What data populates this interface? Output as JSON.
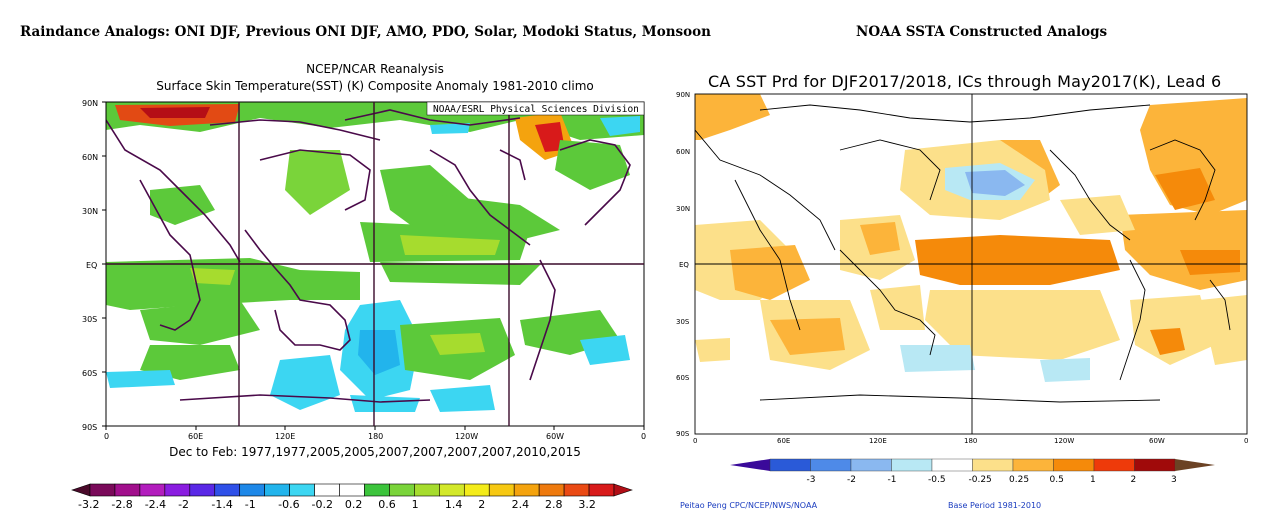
{
  "header": {
    "left_title": "Raindance Analogs: ONI DJF, Previous ONI DJF, AMO, PDO, Solar, Modoki Status, Monsoon",
    "right_title": "NOAA SSTA Constructed Analogs"
  },
  "left_panel": {
    "title_line1": "NCEP/NCAR Reanalysis",
    "title_line2": "Surface Skin Temperature(SST) (K) Composite Anomaly 1981-2010 climo",
    "attribution": "NOAA/ESRL Physical Sciences Division",
    "lat_labels": [
      "90N",
      "60N",
      "30N",
      "EQ",
      "30S",
      "60S",
      "90S"
    ],
    "lon_labels": [
      "0",
      "60E",
      "120E",
      "180",
      "120W",
      "60W",
      "0"
    ],
    "footer": "Dec to Feb: 1977,1977,2005,2005,2007,2007,2007,2007,2010,2015",
    "colorbar_labels": [
      "-3.2",
      "-2.8",
      "-2.4",
      "-2",
      "-1.4",
      "-1",
      "-0.6",
      "-0.2",
      "0.2",
      "0.6",
      "1",
      "1.4",
      "2",
      "2.4",
      "2.8",
      "3.2"
    ],
    "colorbar_colors": [
      "#4a0a2a",
      "#7a0a5a",
      "#a10f8c",
      "#b21dbd",
      "#8a1de0",
      "#5a28e6",
      "#2f50e8",
      "#1e88e8",
      "#22b4ec",
      "#3cd6f2",
      "#ffffff",
      "#ffffff",
      "#3cc43c",
      "#7ad43a",
      "#a6dc2e",
      "#d3e82a",
      "#f4ec1a",
      "#f6c812",
      "#f4a30e",
      "#ee7a0e",
      "#ea4a14",
      "#d81a1a",
      "#b00e16"
    ]
  },
  "right_panel": {
    "title": "CA SST Prd for DJF2017/2018, ICs through May2017(K), Lead 6",
    "lat_labels": [
      "90N",
      "60N",
      "30N",
      "EQ",
      "30S",
      "60S",
      "90S"
    ],
    "lon_labels": [
      "0",
      "60E",
      "120E",
      "180",
      "120W",
      "60W",
      "0"
    ],
    "colorbar_labels": [
      "-3",
      "-2",
      "-1",
      "-0.5",
      "-0.25",
      "0.25",
      "0.5",
      "1",
      "2",
      "3"
    ],
    "colorbar_colors": [
      "#3a0a9a",
      "#2a5ad8",
      "#4e8ae8",
      "#8ab8f0",
      "#b8e8f4",
      "#ffffff",
      "#fce08a",
      "#fcb43a",
      "#f58a0a",
      "#ee3a0a",
      "#a00a0a",
      "#6b4224"
    ],
    "footnote_left": "Peitao Peng CPC/NCEP/NWS/NOAA",
    "footnote_right": "Base Period 1981-2010"
  }
}
